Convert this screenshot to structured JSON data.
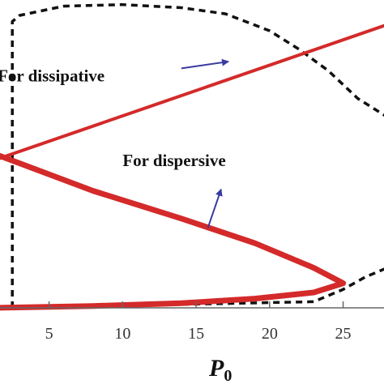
{
  "chart_data": {
    "type": "line",
    "xlabel": "P",
    "xlabel_subscript": "0",
    "xticks": [
      5,
      10,
      15,
      20,
      25
    ],
    "xlim": [
      1,
      28
    ],
    "ylim": [
      0,
      1
    ],
    "grid": false,
    "series": [
      {
        "style": "dashed",
        "color": "#111111",
        "x": [
          2.5,
          2.5,
          3,
          6,
          10,
          14,
          17,
          20,
          22,
          24,
          26,
          28
        ],
        "y": [
          0.0,
          0.93,
          0.95,
          0.98,
          0.985,
          0.975,
          0.955,
          0.9,
          0.84,
          0.77,
          0.68,
          0.62
        ]
      },
      {
        "style": "dashed",
        "color": "#111111",
        "x": [
          2.5,
          23,
          25,
          26.5,
          28
        ],
        "y": [
          0.0,
          0.02,
          0.06,
          0.1,
          0.13
        ]
      },
      {
        "style": "solid",
        "color": "#d42a2a",
        "width": "thin",
        "x": [
          1.3,
          2.5,
          28
        ],
        "y": [
          0.48,
          0.5,
          0.92
        ]
      },
      {
        "style": "solid",
        "color": "#d42a2a",
        "width": "thick",
        "x": [
          1.3,
          1.3,
          1.3,
          8,
          14,
          19,
          23,
          25,
          23,
          19,
          14,
          8,
          1.3
        ],
        "y": [
          0.0,
          0.5,
          0.5,
          0.38,
          0.29,
          0.21,
          0.13,
          0.08,
          0.05,
          0.03,
          0.015,
          0.006,
          0.0
        ]
      }
    ],
    "annotations": [
      {
        "text": "For dissipative",
        "anchor": [
          1.5,
          0.735
        ],
        "arrow_from": [
          14.0,
          0.778
        ],
        "arrow_to": [
          17.2,
          0.8
        ]
      },
      {
        "text": "For dispersive",
        "anchor": [
          10.0,
          0.46
        ],
        "arrow_from": [
          15.8,
          0.26
        ],
        "arrow_to": [
          16.7,
          0.385
        ]
      }
    ],
    "colors": {
      "dissipative": "#111111",
      "dispersive": "#d42a2a",
      "arrow": "#3a3aa0"
    }
  }
}
